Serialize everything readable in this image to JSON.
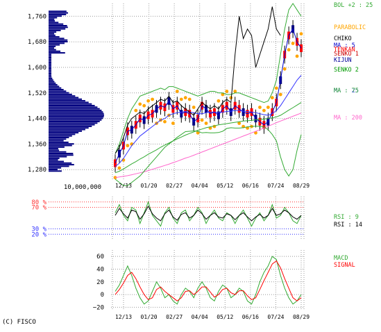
{
  "copyright": "(C) FISCO",
  "volume_scale_label": "10,000,000",
  "colors": {
    "volume": "#000080",
    "candle_up": "#ff0000",
    "candle_down": "#000080",
    "bollinger": "#33aa33",
    "parabolic": "#ffa500",
    "chiko": "#000000",
    "ma5": "#0000cc",
    "tenkan": "#ff0000",
    "senko1": "#cc0000",
    "kijun": "#000099",
    "senko2": "#009900",
    "ma25": "#3333ff",
    "ma75": "#33aa33",
    "ma200": "#ff66cc",
    "rsi9": "#33aa33",
    "rsi14": "#000000",
    "rsi_band_high": "#ff3333",
    "rsi_band_low": "#3333ff",
    "macd": "#33aa33",
    "signal": "#ff0000",
    "grid": "#999999"
  },
  "chart_data": [
    {
      "type": "line",
      "panel": "price",
      "x_tick_labels": [
        "12/13",
        "01/20",
        "02/27",
        "04/04",
        "05/12",
        "06/16",
        "07/24",
        "08/29"
      ],
      "y_tick_labels": [
        "1,760",
        "1,680",
        "1,600",
        "1,520",
        "1,440",
        "1,360",
        "1,280"
      ],
      "ylim": [
        1250,
        1800
      ],
      "legend": [
        {
          "label": "BOL +2 : 25",
          "color": "#33aa33"
        },
        {
          "label": "PARABOLIC",
          "color": "#ffa500"
        },
        {
          "label": "CHIKO",
          "color": "#000000"
        },
        {
          "label": "MA : 5",
          "color": "#0000cc"
        },
        {
          "label": "TENKAN",
          "color": "#ff0000"
        },
        {
          "label": "SENKO 1",
          "color": "#cc0000"
        },
        {
          "label": "KIJUN",
          "color": "#000099"
        },
        {
          "label": "SENKO 2",
          "color": "#009900"
        },
        {
          "label": "MA : 25",
          "color": "#3333ff"
        },
        {
          "label": "MA : 75",
          "color": "#33aa33"
        },
        {
          "label": "MA : 200",
          "color": "#ff66cc"
        }
      ],
      "series": [
        {
          "name": "MA : 5",
          "values": [
            1300,
            1330,
            1355,
            1400,
            1405,
            1420,
            1440,
            1435,
            1450,
            1455,
            1470,
            1480,
            1475,
            1495,
            1470,
            1480,
            1455,
            1460,
            1455,
            1430,
            1440,
            1480,
            1470,
            1455,
            1460,
            1450,
            1470,
            1480,
            1460,
            1480,
            1470,
            1460,
            1455,
            1460,
            1440,
            1430,
            1420,
            1430,
            1460,
            1490,
            1560,
            1640,
            1700,
            1720,
            1680,
            1660
          ]
        },
        {
          "name": "MA : 25",
          "values": [
            1290,
            1300,
            1315,
            1335,
            1355,
            1370,
            1385,
            1395,
            1405,
            1415,
            1425,
            1435,
            1440,
            1450,
            1455,
            1458,
            1460,
            1462,
            1460,
            1458,
            1455,
            1455,
            1458,
            1460,
            1460,
            1458,
            1460,
            1462,
            1463,
            1465,
            1465,
            1463,
            1462,
            1460,
            1458,
            1455,
            1452,
            1450,
            1455,
            1465,
            1480,
            1500,
            1520,
            1540,
            1560,
            1575
          ]
        },
        {
          "name": "MA : 75",
          "values": [
            1270,
            1275,
            1282,
            1290,
            1298,
            1305,
            1313,
            1320,
            1328,
            1335,
            1342,
            1350,
            1357,
            1363,
            1370,
            1376,
            1382,
            1388,
            1393,
            1398,
            1403,
            1407,
            1411,
            1414,
            1417,
            1420,
            1422,
            1424,
            1426,
            1428,
            1430,
            1432,
            1433,
            1434,
            1436,
            1437,
            1438,
            1440,
            1442,
            1445,
            1450,
            1458,
            1466,
            1474,
            1482,
            1490
          ]
        },
        {
          "name": "MA : 200",
          "values": [
            1255,
            1257,
            1259,
            1261,
            1264,
            1267,
            1270,
            1273,
            1277,
            1281,
            1285,
            1289,
            1293,
            1297,
            1302,
            1306,
            1311,
            1316,
            1320,
            1325,
            1330,
            1335,
            1340,
            1345,
            1350,
            1355,
            1360,
            1365,
            1370,
            1375,
            1380,
            1385,
            1390,
            1395,
            1400,
            1405,
            1410,
            1416,
            1421,
            1427,
            1432,
            1437,
            1442,
            1447,
            1452,
            1457
          ]
        },
        {
          "name": "BOL +2 : 25",
          "values": [
            1330,
            1360,
            1400,
            1440,
            1470,
            1490,
            1510,
            1515,
            1520,
            1525,
            1530,
            1535,
            1530,
            1540,
            1540,
            1535,
            1530,
            1525,
            1520,
            1515,
            1510,
            1515,
            1520,
            1525,
            1525,
            1520,
            1520,
            1515,
            1515,
            1520,
            1520,
            1515,
            1510,
            1505,
            1500,
            1495,
            1490,
            1495,
            1520,
            1560,
            1640,
            1720,
            1780,
            1800,
            1780,
            1760
          ]
        },
        {
          "name": "CHIKO",
          "values": [
            1330,
            1350,
            1380,
            1420,
            1440,
            1450,
            1460,
            1455,
            1470,
            1480,
            1490,
            1500,
            1495,
            1510,
            1490,
            1495,
            1480,
            1470,
            1460,
            1450,
            1470,
            1490,
            1480,
            1470,
            1480,
            1470,
            1490,
            1500,
            1490,
            1640,
            1760,
            1690,
            1720,
            1700,
            1600,
            1640,
            1680,
            1720,
            1790,
            1720,
            1700,
            null,
            null,
            null,
            null,
            null
          ]
        }
      ]
    },
    {
      "type": "line",
      "panel": "rsi",
      "y_tick_labels": [
        "80 %",
        "70 %",
        "30 %",
        "20 %"
      ],
      "ylim": [
        10,
        90
      ],
      "legend": [
        {
          "label": "RSI : 9",
          "color": "#33aa33"
        },
        {
          "label": "RSI : 14",
          "color": "#000000"
        }
      ],
      "series": [
        {
          "name": "RSI : 9",
          "values": [
            60,
            75,
            55,
            45,
            70,
            65,
            40,
            60,
            80,
            55,
            45,
            35,
            60,
            70,
            50,
            40,
            60,
            65,
            45,
            55,
            70,
            60,
            40,
            55,
            65,
            50,
            45,
            60,
            55,
            40,
            55,
            65,
            50,
            35,
            50,
            60,
            45,
            55,
            75,
            50,
            55,
            70,
            60,
            45,
            40,
            55
          ]
        },
        {
          "name": "RSI : 14",
          "values": [
            55,
            68,
            58,
            50,
            65,
            62,
            48,
            58,
            72,
            58,
            50,
            45,
            58,
            65,
            52,
            46,
            57,
            60,
            50,
            55,
            65,
            58,
            48,
            55,
            60,
            52,
            50,
            58,
            55,
            47,
            55,
            60,
            52,
            45,
            52,
            57,
            50,
            55,
            68,
            55,
            58,
            65,
            60,
            52,
            48,
            55
          ]
        }
      ]
    },
    {
      "type": "line",
      "panel": "macd",
      "y_tick_labels": [
        "60",
        "40",
        "20",
        "0",
        "−20"
      ],
      "ylim": [
        -25,
        70
      ],
      "legend": [
        {
          "label": "MACD",
          "color": "#33aa33"
        },
        {
          "label": "SIGNAL",
          "color": "#ff0000"
        }
      ],
      "series": [
        {
          "name": "MACD",
          "values": [
            5,
            15,
            30,
            45,
            30,
            10,
            -5,
            -15,
            -10,
            5,
            20,
            10,
            -5,
            0,
            -10,
            -15,
            0,
            10,
            5,
            -5,
            10,
            20,
            10,
            -5,
            -10,
            5,
            15,
            10,
            -5,
            0,
            10,
            5,
            -10,
            -15,
            0,
            20,
            35,
            45,
            60,
            55,
            30,
            10,
            -5,
            -15,
            -10,
            0
          ]
        },
        {
          "name": "SIGNAL",
          "values": [
            0,
            8,
            18,
            30,
            35,
            25,
            12,
            0,
            -8,
            -5,
            8,
            12,
            5,
            0,
            -5,
            -10,
            -5,
            5,
            6,
            0,
            5,
            12,
            12,
            4,
            -4,
            0,
            8,
            10,
            3,
            0,
            6,
            6,
            -2,
            -8,
            -5,
            8,
            22,
            35,
            48,
            53,
            42,
            25,
            10,
            -5,
            -10,
            -5
          ]
        }
      ]
    }
  ]
}
